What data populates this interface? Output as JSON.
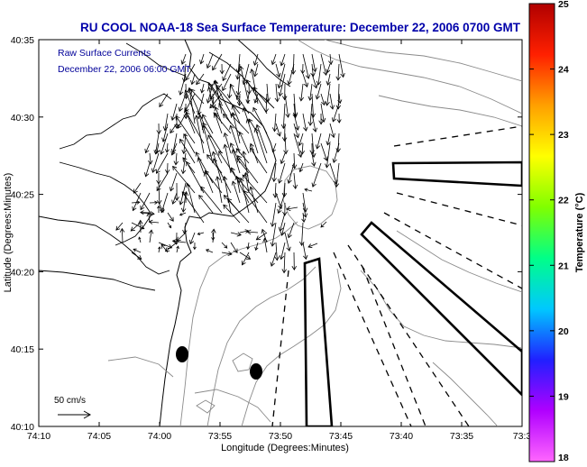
{
  "title": "RU COOL  NOAA-18  Sea Surface Temperature:  December 22, 2006 0700 GMT",
  "legend": {
    "line1": "Raw Surface Currents",
    "line2": "December 22, 2006 06:00 GMT"
  },
  "axes": {
    "xlabel": "Longitude (Degrees:Minutes)",
    "ylabel": "Latitude (Degrees:Minutes)",
    "xticks": [
      "74:10",
      "74:05",
      "74:00",
      "73:55",
      "73:50",
      "73:45",
      "73:40",
      "73:35",
      "73:3"
    ],
    "yticks": [
      "40:35",
      "40:30",
      "40:25",
      "40:20",
      "40:15",
      "40:10"
    ]
  },
  "scale_arrow": {
    "label": "50 cm/s"
  },
  "colorbar": {
    "title": "Temperature (°C)",
    "ticks": [
      "25",
      "24",
      "23",
      "22",
      "21",
      "20",
      "19",
      "18"
    ],
    "min": 18,
    "max": 25,
    "colors": [
      "#ff66ff",
      "#b000ff",
      "#2020ff",
      "#00c8ff",
      "#00ff88",
      "#80ff00",
      "#ffff00",
      "#ffa000",
      "#ff2000",
      "#b00000"
    ]
  },
  "colors": {
    "title": "#0000aa",
    "legend_text": "#000099",
    "frame": "#000000"
  }
}
